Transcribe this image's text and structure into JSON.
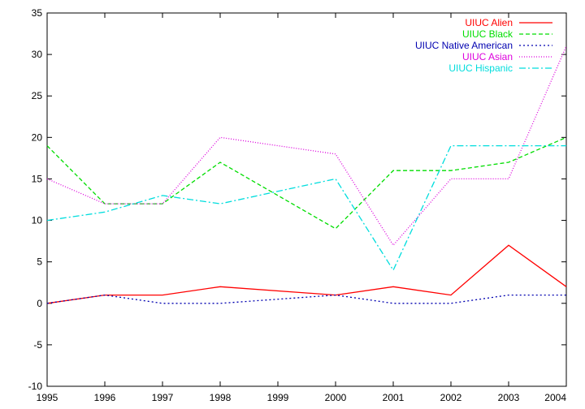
{
  "chart_data": {
    "type": "line",
    "title": "",
    "xlabel": "",
    "ylabel": "",
    "x": [
      1995,
      1996,
      1997,
      1998,
      1999,
      2000,
      2001,
      2002,
      2003,
      2004
    ],
    "xlim": [
      1995,
      2004
    ],
    "ylim": [
      -10,
      35
    ],
    "x_ticks": [
      "1995",
      "1996",
      "1997",
      "1998",
      "1999",
      "2000",
      "2001",
      "2002",
      "2003",
      "2004"
    ],
    "y_ticks": [
      "-10",
      "-5",
      "0",
      "5",
      "10",
      "15",
      "20",
      "25",
      "30",
      "35"
    ],
    "grid": false,
    "legend_position": "top-right",
    "series": [
      {
        "name": "UIUC Alien",
        "color": "#ff0000",
        "style": "solid",
        "points": [
          [
            1995,
            0
          ],
          [
            1996,
            1
          ],
          [
            1997,
            1
          ],
          [
            1998,
            2
          ],
          [
            2000,
            1
          ],
          [
            2001,
            2
          ],
          [
            2002,
            1
          ],
          [
            2003,
            7
          ],
          [
            2004,
            2
          ]
        ]
      },
      {
        "name": "UIUC Black",
        "color": "#00dd00",
        "style": "dashed",
        "points": [
          [
            1995,
            19
          ],
          [
            1996,
            12
          ],
          [
            1997,
            12
          ],
          [
            1998,
            17
          ],
          [
            2000,
            9
          ],
          [
            2001,
            16
          ],
          [
            2002,
            16
          ],
          [
            2003,
            17
          ],
          [
            2004,
            20
          ]
        ]
      },
      {
        "name": "UIUC Native American",
        "color": "#0000b0",
        "style": "dotted",
        "points": [
          [
            1995,
            0
          ],
          [
            1996,
            1
          ],
          [
            1997,
            0
          ],
          [
            1998,
            0
          ],
          [
            2000,
            1
          ],
          [
            2001,
            0
          ],
          [
            2002,
            0
          ],
          [
            2003,
            1
          ],
          [
            2004,
            1
          ]
        ]
      },
      {
        "name": "UIUC Asian",
        "color": "#dd00dd",
        "style": "fine-dotted",
        "points": [
          [
            1995,
            15
          ],
          [
            1996,
            12
          ],
          [
            1997,
            12
          ],
          [
            1998,
            20
          ],
          [
            2000,
            18
          ],
          [
            2001,
            7
          ],
          [
            2002,
            15
          ],
          [
            2003,
            15
          ],
          [
            2004,
            31
          ]
        ]
      },
      {
        "name": "UIUC Hispanic",
        "color": "#00dddd",
        "style": "dash-dot",
        "points": [
          [
            1995,
            10
          ],
          [
            1996,
            11
          ],
          [
            1997,
            13
          ],
          [
            1998,
            12
          ],
          [
            2000,
            15
          ],
          [
            2001,
            4
          ],
          [
            2002,
            19
          ],
          [
            2003,
            19
          ],
          [
            2004,
            19
          ]
        ]
      }
    ]
  }
}
